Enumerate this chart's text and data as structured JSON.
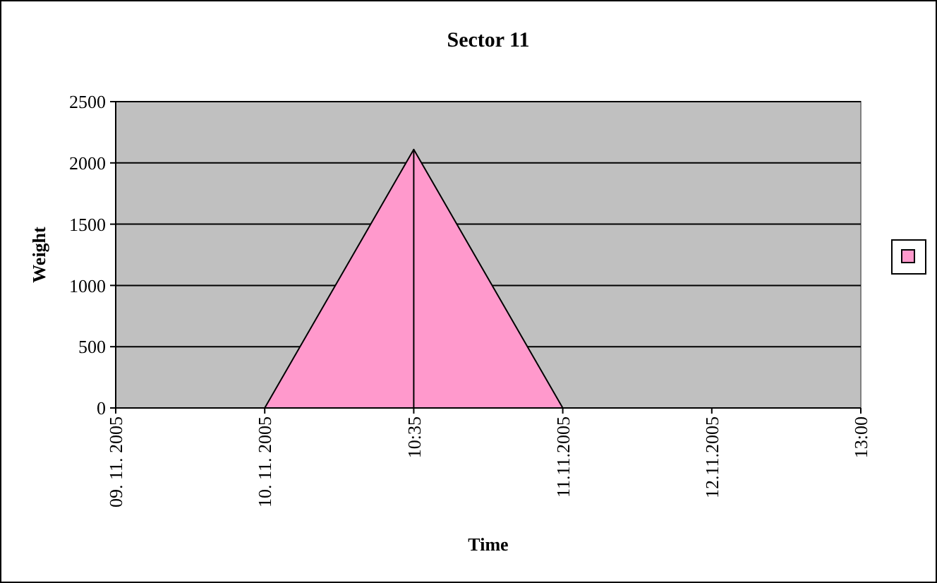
{
  "chart_data": {
    "type": "area",
    "title": "Sector 11",
    "xlabel": "Time",
    "ylabel": "Weight",
    "categories": [
      "09. 11. 2005",
      "10. 11. 2005",
      "10:35",
      "11.11.2005",
      "12.11.2005",
      "13:00"
    ],
    "series": [
      {
        "color": "#ff99cc",
        "values": [
          0,
          0,
          2110,
          0,
          0,
          0
        ]
      }
    ],
    "ylim": [
      0,
      2500
    ],
    "yticks": [
      0,
      500,
      1000,
      1500,
      2000,
      2500
    ],
    "grid": "y",
    "ref_lines": [
      {
        "axis": "x",
        "value": "10:35",
        "color": "#000000"
      }
    ]
  }
}
